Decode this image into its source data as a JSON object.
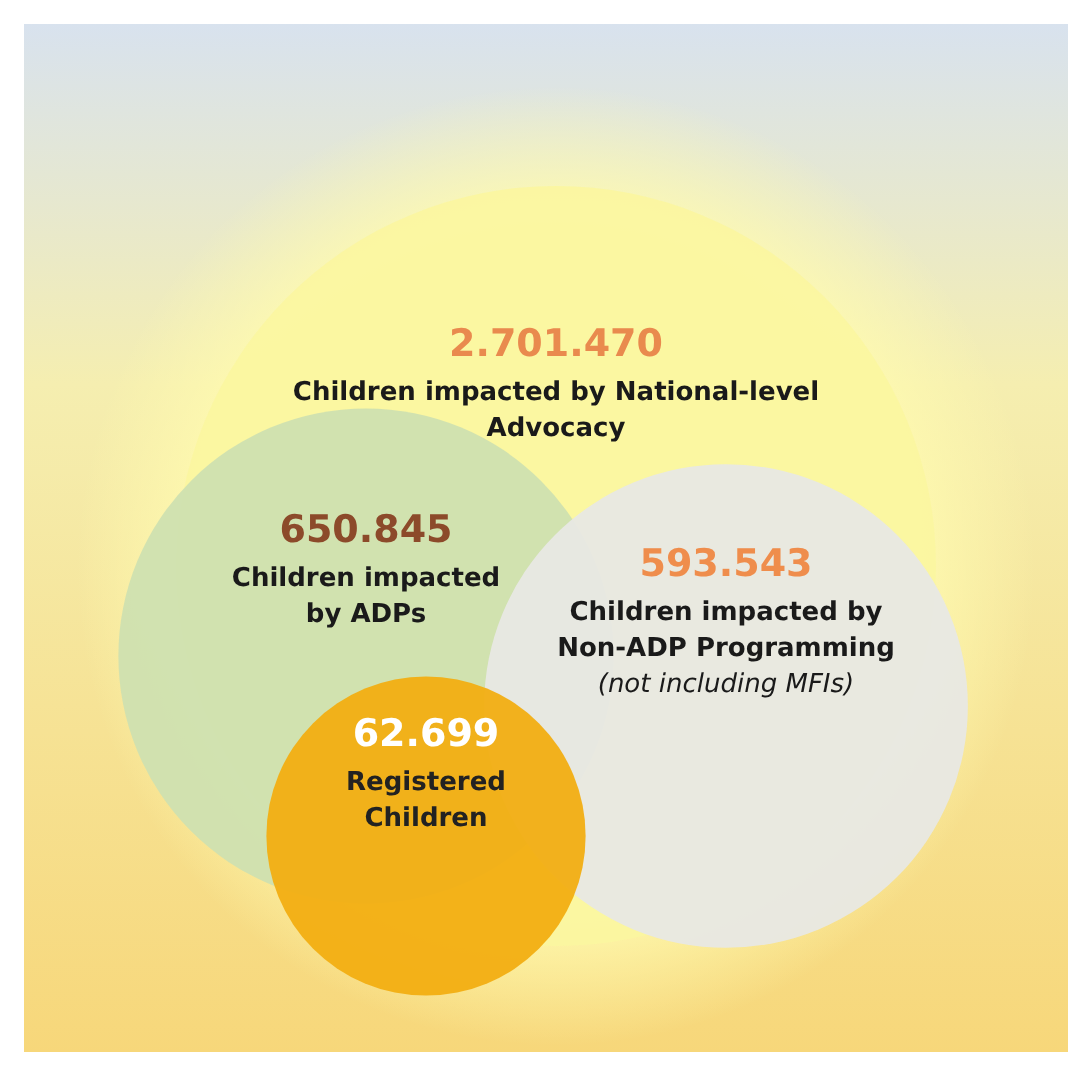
{
  "chart_data": {
    "type": "other",
    "categories": [
      "Children impacted by National-level Advocacy",
      "Children impacted by ADPs",
      "Children impacted by Non-ADP Programming (not including MFIs)",
      "Registered Children"
    ],
    "values": [
      2701470,
      650845,
      593543,
      62699
    ],
    "value_labels": [
      "2.701.470",
      "650.845",
      "593.543",
      "62.699"
    ],
    "colors": [
      "#fbf6a0",
      "#cfe0b0",
      "#e8e8e4",
      "#f2ae12"
    ]
  }
}
